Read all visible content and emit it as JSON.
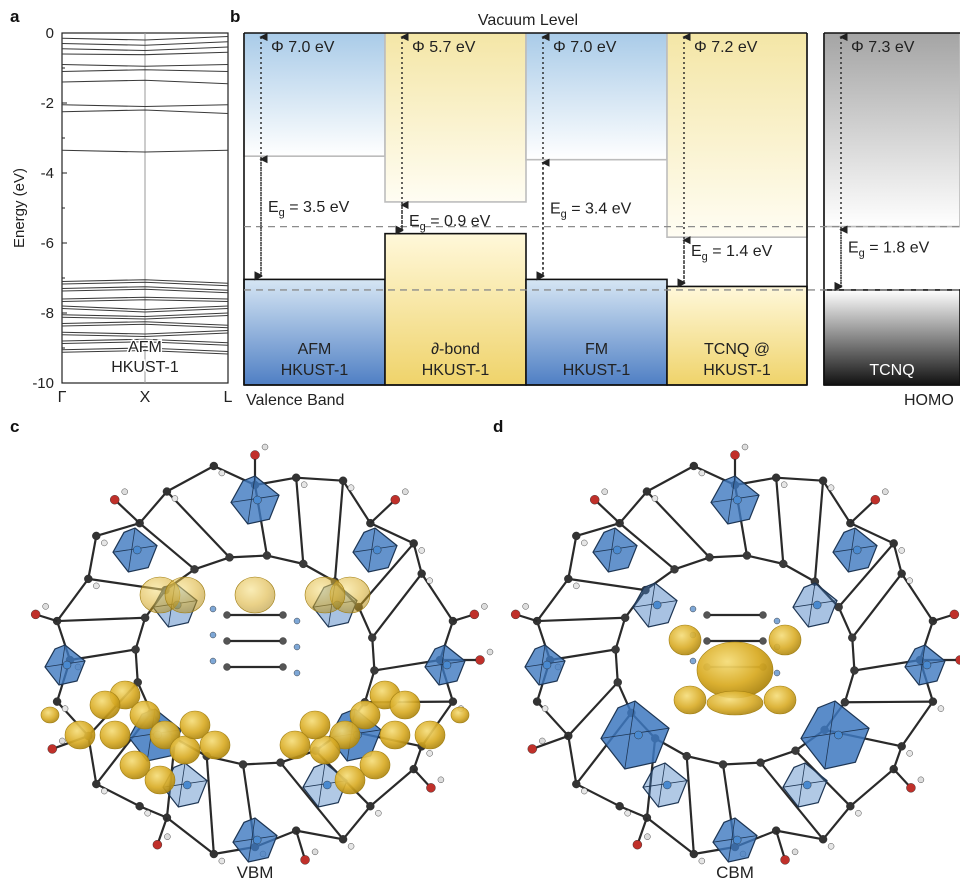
{
  "panel_labels": {
    "a": "a",
    "b": "b",
    "c": "c",
    "d": "d"
  },
  "chart_data": [
    {
      "type": "line",
      "panel": "a",
      "ylabel": "Energy (eV)",
      "ylim": [
        -10,
        0
      ],
      "yticks": [
        "0",
        "-2",
        "-4",
        "-6",
        "-8",
        "-10"
      ],
      "ytick_values": [
        0,
        -2,
        -4,
        -6,
        -8,
        -10
      ],
      "xticks": [
        "Γ",
        "X",
        "L"
      ],
      "annotation": [
        "AFM",
        "HKUST-1"
      ],
      "series": [
        {
          "values": [
            -0.15,
            -0.2,
            -0.1
          ]
        },
        {
          "values": [
            -0.3,
            -0.35,
            -0.25
          ]
        },
        {
          "values": [
            -0.45,
            -0.5,
            -0.4
          ]
        },
        {
          "values": [
            -0.6,
            -0.62,
            -0.55
          ]
        },
        {
          "values": [
            -0.9,
            -0.95,
            -0.9
          ]
        },
        {
          "values": [
            -1.1,
            -1.05,
            -1.1
          ]
        },
        {
          "values": [
            -1.4,
            -1.35,
            -1.45
          ]
        },
        {
          "values": [
            -2.05,
            -2.1,
            -2.05
          ]
        },
        {
          "values": [
            -2.25,
            -2.2,
            -2.3
          ]
        },
        {
          "values": [
            -3.35,
            -3.4,
            -3.35
          ]
        },
        {
          "values": [
            -7.1,
            -7.05,
            -7.15
          ]
        },
        {
          "values": [
            -7.3,
            -7.25,
            -7.35
          ]
        },
        {
          "values": [
            -7.6,
            -7.55,
            -7.6
          ]
        },
        {
          "values": [
            -7.8,
            -7.9,
            -7.8
          ]
        },
        {
          "values": [
            -8.05,
            -8.1,
            -8.0
          ]
        },
        {
          "values": [
            -8.3,
            -8.25,
            -8.35
          ]
        },
        {
          "values": [
            -8.55,
            -8.6,
            -8.5
          ]
        },
        {
          "values": [
            -8.8,
            -8.75,
            -8.85
          ]
        },
        {
          "values": [
            -9.05,
            -9.0,
            -9.1
          ]
        }
      ]
    },
    {
      "type": "bar",
      "panel": "b",
      "title": "Vacuum Level",
      "bottom_left_label": "Valence Band",
      "bottom_right_label": "HOMO",
      "ylim": [
        -10,
        0
      ],
      "reference_lines": [
        -5.5,
        -7.3
      ],
      "materials": [
        {
          "name": [
            "AFM",
            "HKUST-1"
          ],
          "work_function": "Φ 7.0 eV",
          "phi": 7.0,
          "gap_label": "3.5 eV",
          "gap": 3.5,
          "style": "blue"
        },
        {
          "name": [
            "∂-bond",
            "HKUST-1"
          ],
          "work_function": "Φ 5.7 eV",
          "phi": 5.7,
          "gap_label": "0.9 eV",
          "gap": 0.9,
          "style": "yellow"
        },
        {
          "name": [
            "FM",
            "HKUST-1"
          ],
          "work_function": "Φ 7.0 eV",
          "phi": 7.0,
          "gap_label": "3.4 eV",
          "gap": 3.4,
          "style": "blue"
        },
        {
          "name": [
            "TCNQ @",
            "HKUST-1"
          ],
          "work_function": "Φ 7.2 eV",
          "phi": 7.2,
          "gap_label": "1.4 eV",
          "gap": 1.4,
          "style": "yellow"
        },
        {
          "name": [
            "TCNQ"
          ],
          "work_function": "Φ 7.3 eV",
          "phi": 7.3,
          "gap_label": "1.8 eV",
          "gap": 1.8,
          "style": "gray"
        }
      ]
    }
  ],
  "structures": {
    "c": {
      "label": "VBM"
    },
    "d": {
      "label": "CBM"
    }
  },
  "gap_symbol": {
    "E": "E",
    "sub": "g",
    "eq": " = "
  }
}
